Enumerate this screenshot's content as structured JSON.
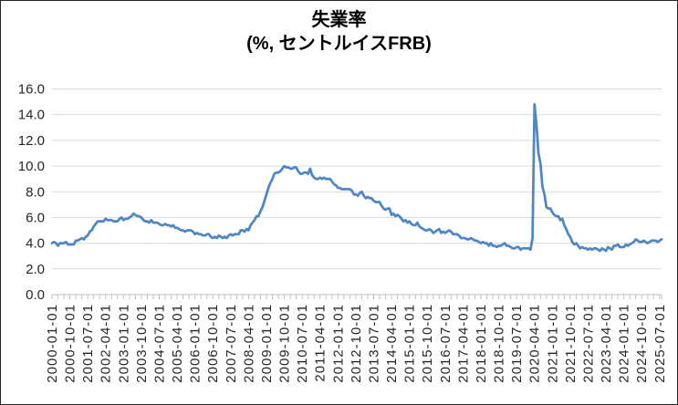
{
  "title": {
    "line1": "失業率",
    "line2": "(%, セントルイスFRB)"
  },
  "chart_data": {
    "type": "line",
    "title": "失業率",
    "subtitle": "(%, セントルイスFRB)",
    "series_name": "失業率 (%, セントルイスFRB)",
    "x_start": "2000-01-01",
    "x_frequency": "monthly",
    "x_label_step_months": 9,
    "x_minor_tick_step_months": 3,
    "ylim": [
      0,
      16
    ],
    "grid": "horizontal",
    "legend": "none",
    "y_ticks": [
      "0.0",
      "2.0",
      "4.0",
      "6.0",
      "8.0",
      "10.0",
      "12.0",
      "14.0",
      "16.0"
    ],
    "x_tick_labels": [
      "2000-01-01",
      "2000-10-01",
      "2001-07-01",
      "2002-04-01",
      "2003-01-01",
      "2003-10-01",
      "2004-07-01",
      "2005-04-01",
      "2006-01-01",
      "2006-10-01",
      "2007-07-01",
      "2008-04-01",
      "2009-01-01",
      "2009-10-01",
      "2010-07-01",
      "2011-04-01",
      "2012-01-01",
      "2012-10-01",
      "2013-07-01",
      "2014-04-01",
      "2015-01-01",
      "2015-10-01",
      "2016-07-01",
      "2017-04-01",
      "2018-01-01",
      "2018-10-01",
      "2019-07-01",
      "2020-04-01",
      "2021-01-01",
      "2021-10-01",
      "2022-07-01",
      "2023-04-01",
      "2024-01-01",
      "2024-10-01",
      "2025-07-01"
    ],
    "values": [
      4.0,
      4.1,
      4.0,
      3.8,
      4.0,
      4.0,
      4.0,
      4.1,
      3.9,
      3.9,
      3.9,
      3.9,
      4.2,
      4.2,
      4.3,
      4.4,
      4.3,
      4.5,
      4.6,
      4.9,
      5.0,
      5.3,
      5.5,
      5.7,
      5.7,
      5.7,
      5.7,
      5.9,
      5.8,
      5.8,
      5.8,
      5.7,
      5.7,
      5.7,
      5.9,
      6.0,
      5.8,
      5.9,
      5.9,
      6.0,
      6.1,
      6.3,
      6.2,
      6.1,
      6.1,
      6.0,
      5.8,
      5.7,
      5.7,
      5.6,
      5.8,
      5.6,
      5.6,
      5.6,
      5.5,
      5.4,
      5.4,
      5.5,
      5.4,
      5.4,
      5.3,
      5.4,
      5.2,
      5.2,
      5.1,
      5.0,
      5.0,
      4.9,
      5.0,
      5.0,
      5.0,
      4.9,
      4.7,
      4.8,
      4.7,
      4.7,
      4.6,
      4.6,
      4.7,
      4.7,
      4.5,
      4.4,
      4.5,
      4.4,
      4.6,
      4.5,
      4.4,
      4.5,
      4.4,
      4.6,
      4.7,
      4.6,
      4.7,
      4.7,
      4.7,
      5.0,
      5.0,
      4.9,
      5.1,
      5.0,
      5.4,
      5.6,
      5.8,
      6.1,
      6.1,
      6.5,
      6.8,
      7.3,
      7.8,
      8.3,
      8.7,
      9.0,
      9.4,
      9.5,
      9.5,
      9.6,
      9.8,
      10.0,
      9.9,
      9.9,
      9.8,
      9.8,
      9.9,
      9.9,
      9.6,
      9.4,
      9.4,
      9.5,
      9.5,
      9.4,
      9.8,
      9.3,
      9.1,
      9.0,
      9.0,
      9.1,
      9.0,
      9.1,
      9.0,
      9.0,
      9.0,
      8.8,
      8.6,
      8.5,
      8.3,
      8.3,
      8.2,
      8.2,
      8.2,
      8.2,
      8.2,
      8.1,
      7.8,
      7.8,
      7.7,
      7.9,
      8.0,
      7.7,
      7.5,
      7.6,
      7.5,
      7.5,
      7.3,
      7.2,
      7.2,
      7.2,
      6.9,
      6.7,
      6.6,
      6.7,
      6.7,
      6.2,
      6.3,
      6.1,
      6.2,
      6.1,
      5.9,
      5.7,
      5.8,
      5.6,
      5.7,
      5.5,
      5.4,
      5.4,
      5.6,
      5.3,
      5.2,
      5.1,
      5.0,
      5.0,
      5.1,
      5.0,
      4.8,
      4.9,
      5.0,
      5.1,
      4.8,
      4.9,
      4.8,
      4.9,
      5.0,
      4.9,
      4.7,
      4.7,
      4.7,
      4.6,
      4.4,
      4.4,
      4.4,
      4.3,
      4.3,
      4.4,
      4.3,
      4.2,
      4.2,
      4.1,
      4.0,
      4.1,
      4.0,
      4.0,
      3.8,
      4.0,
      3.8,
      3.8,
      3.7,
      3.8,
      3.8,
      3.9,
      4.0,
      3.8,
      3.8,
      3.7,
      3.6,
      3.6,
      3.7,
      3.7,
      3.5,
      3.6,
      3.6,
      3.6,
      3.6,
      3.5,
      4.4,
      14.8,
      13.2,
      11.0,
      10.2,
      8.4,
      7.8,
      6.8,
      6.7,
      6.7,
      6.4,
      6.2,
      6.1,
      6.1,
      5.8,
      5.9,
      5.4,
      5.1,
      4.7,
      4.5,
      4.1,
      3.9,
      4.0,
      3.8,
      3.6,
      3.7,
      3.6,
      3.6,
      3.5,
      3.6,
      3.5,
      3.6,
      3.6,
      3.5,
      3.4,
      3.6,
      3.5,
      3.4,
      3.7,
      3.6,
      3.5,
      3.8,
      3.8,
      3.9,
      3.7,
      3.7,
      3.7,
      3.9,
      3.8,
      3.9,
      4.0,
      4.1,
      4.3,
      4.2,
      4.1,
      4.1,
      4.2,
      4.1,
      4.0,
      4.1,
      4.2,
      4.2,
      4.2,
      4.1,
      4.2,
      4.3
    ],
    "colors": {
      "line": "#4F86C6",
      "gridline": "#D9D9D9",
      "axis": "#BFBFBF",
      "tick": "#C0C0C0",
      "label_text": "#262626",
      "title_text": "#000000",
      "border": "#262626",
      "background": "#FFFFFF"
    }
  }
}
